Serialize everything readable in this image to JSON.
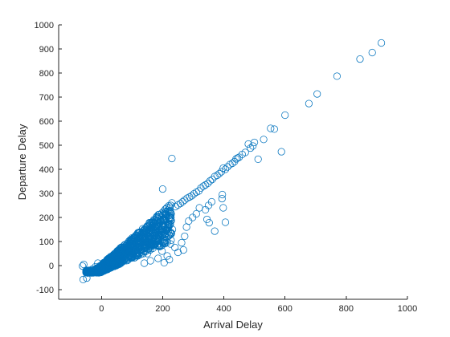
{
  "chart_data": {
    "type": "scatter",
    "title": "",
    "xlabel": "Arrival Delay",
    "ylabel": "Departure Delay",
    "xlim": [
      -140,
      1000
    ],
    "ylim": [
      -140,
      1000
    ],
    "xticks": [
      0,
      200,
      400,
      600,
      800,
      1000
    ],
    "yticks": [
      -100,
      0,
      100,
      200,
      300,
      400,
      500,
      600,
      700,
      800,
      900,
      1000
    ],
    "marker": "circle-open",
    "color": "#0072BD",
    "grid": false,
    "series": [
      {
        "points": [
          [
            915,
            925
          ],
          [
            885,
            885
          ],
          [
            845,
            858
          ],
          [
            770,
            787
          ],
          [
            705,
            713
          ],
          [
            678,
            673
          ],
          [
            600,
            625
          ],
          [
            588,
            473
          ],
          [
            565,
            567
          ],
          [
            553,
            570
          ],
          [
            530,
            524
          ],
          [
            512,
            442
          ],
          [
            500,
            512
          ],
          [
            495,
            497
          ],
          [
            487,
            488
          ],
          [
            480,
            505
          ],
          [
            470,
            470
          ],
          [
            460,
            462
          ],
          [
            450,
            450
          ],
          [
            445,
            447
          ],
          [
            440,
            443
          ],
          [
            435,
            432
          ],
          [
            428,
            425
          ],
          [
            420,
            420
          ],
          [
            412,
            410
          ],
          [
            405,
            400
          ],
          [
            398,
            405
          ],
          [
            392,
            390
          ],
          [
            385,
            382
          ],
          [
            378,
            375
          ],
          [
            370,
            370
          ],
          [
            362,
            358
          ],
          [
            355,
            352
          ],
          [
            348,
            342
          ],
          [
            340,
            335
          ],
          [
            333,
            330
          ],
          [
            325,
            322
          ],
          [
            318,
            310
          ],
          [
            310,
            305
          ],
          [
            302,
            298
          ],
          [
            295,
            290
          ],
          [
            288,
            285
          ],
          [
            280,
            280
          ],
          [
            272,
            272
          ],
          [
            265,
            265
          ],
          [
            258,
            258
          ],
          [
            250,
            252
          ],
          [
            242,
            245
          ],
          [
            395,
            295
          ],
          [
            394,
            278
          ],
          [
            398,
            240
          ],
          [
            360,
            265
          ],
          [
            350,
            250
          ],
          [
            345,
            192
          ],
          [
            352,
            178
          ],
          [
            340,
            232
          ],
          [
            320,
            240
          ],
          [
            310,
            215
          ],
          [
            298,
            200
          ],
          [
            285,
            185
          ],
          [
            278,
            160
          ],
          [
            272,
            122
          ],
          [
            370,
            143
          ],
          [
            405,
            180
          ],
          [
            230,
            445
          ],
          [
            200,
            318
          ],
          [
            232,
            150
          ],
          [
            225,
            90
          ],
          [
            250,
            55
          ],
          [
            262,
            95
          ],
          [
            268,
            65
          ],
          [
            240,
            75
          ],
          [
            215,
            40
          ],
          [
            222,
            25
          ],
          [
            205,
            12
          ],
          [
            185,
            30
          ],
          [
            198,
            60
          ],
          [
            175,
            90
          ],
          [
            160,
            20
          ],
          [
            150,
            50
          ],
          [
            140,
            10
          ],
          [
            -60,
            -58
          ],
          [
            -48,
            -52
          ],
          [
            -62,
            -2
          ],
          [
            -58,
            5
          ],
          [
            -35,
            -30
          ],
          [
            -30,
            -15
          ],
          [
            -20,
            -5
          ],
          [
            -12,
            10
          ]
        ]
      }
    ]
  }
}
